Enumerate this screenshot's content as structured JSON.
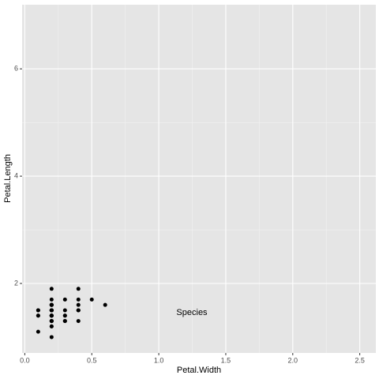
{
  "chart_data": {
    "type": "scatter",
    "x_label": "Petal.Width",
    "y_label": "Petal.Length",
    "annotation": "Species",
    "color": "#000000",
    "x": [
      0.2,
      0.2,
      0.2,
      0.2,
      0.2,
      0.4,
      0.3,
      0.2,
      0.2,
      0.1,
      0.2,
      0.2,
      0.1,
      0.1,
      0.2,
      0.4,
      0.4,
      0.3,
      0.3,
      0.3,
      0.2,
      0.4,
      0.2,
      0.5,
      0.2,
      0.2,
      0.4,
      0.2,
      0.2,
      0.2,
      0.2,
      0.4,
      0.1,
      0.2,
      0.2,
      0.2,
      0.2,
      0.1,
      0.2,
      0.2,
      0.3,
      0.3,
      0.2,
      0.6,
      0.4,
      0.2,
      0.2,
      0.2,
      0.2,
      0.2
    ],
    "values": [
      1.4,
      1.4,
      1.3,
      1.5,
      1.4,
      1.7,
      1.4,
      1.5,
      1.4,
      1.5,
      1.5,
      1.6,
      1.4,
      1.1,
      1.2,
      1.5,
      1.3,
      1.4,
      1.7,
      1.5,
      1.7,
      1.5,
      1.0,
      1.7,
      1.9,
      1.6,
      1.6,
      1.5,
      1.4,
      1.6,
      1.6,
      1.5,
      1.5,
      1.4,
      1.5,
      1.2,
      1.3,
      1.4,
      1.3,
      1.5,
      1.3,
      1.3,
      1.3,
      1.6,
      1.9,
      1.6,
      1.4,
      1.6,
      1.5,
      1.4
    ],
    "xlim": [
      -0.02,
      2.62
    ],
    "ylim": [
      0.705,
      7.195
    ],
    "xticks": [
      {
        "value": 0,
        "label": "0.0"
      },
      0.5,
      {
        "value": 1,
        "label": "1.0"
      },
      1.5,
      {
        "value": 2,
        "label": "2.0"
      },
      2.5
    ],
    "yticks": [
      2,
      4,
      6
    ],
    "grid": true
  }
}
